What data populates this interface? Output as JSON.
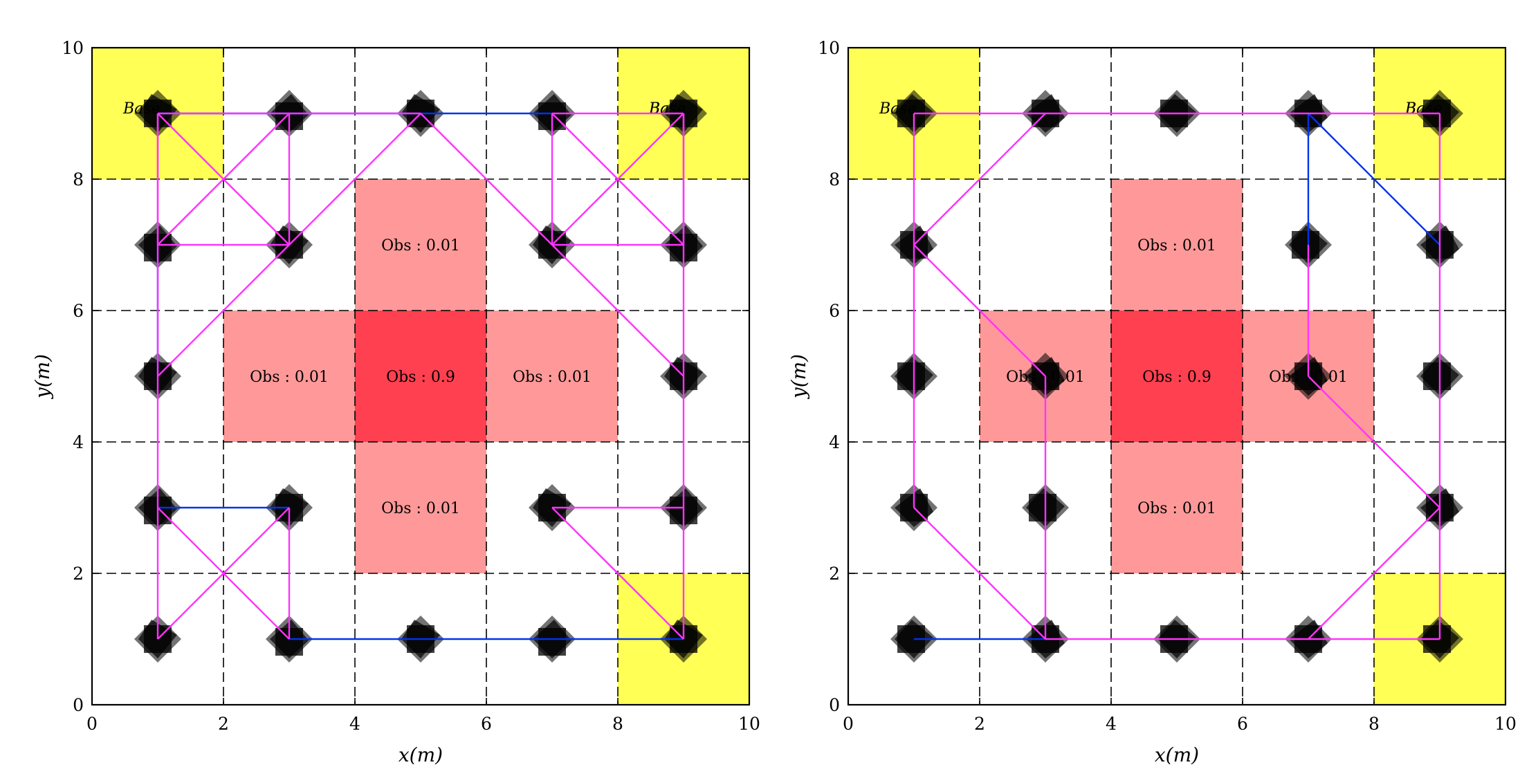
{
  "chart_data": [
    {
      "type": "scatter",
      "title": "",
      "xlabel": "x(m)",
      "ylabel": "y(m)",
      "xlim": [
        0,
        10
      ],
      "ylim": [
        0,
        10
      ],
      "xticks": [
        "0",
        "2",
        "4",
        "6",
        "8",
        "10"
      ],
      "yticks": [
        "0",
        "2",
        "4",
        "6",
        "8",
        "10"
      ],
      "grid": true,
      "grid_style": "dashed",
      "regions": [
        {
          "label": "Base",
          "x": [
            0,
            2
          ],
          "y": [
            8,
            10
          ],
          "color": "#ffff55"
        },
        {
          "label": "Base",
          "x": [
            8,
            10
          ],
          "y": [
            8,
            10
          ],
          "color": "#ffff55"
        },
        {
          "label": "Base",
          "x": [
            8,
            10
          ],
          "y": [
            0,
            2
          ],
          "color": "#ffff55"
        },
        {
          "label": "Obs : 0.01",
          "x": [
            4,
            6
          ],
          "y": [
            6,
            8
          ],
          "color": "#ff9999"
        },
        {
          "label": "Obs : 0.01",
          "x": [
            2,
            4
          ],
          "y": [
            4,
            6
          ],
          "color": "#ff9999"
        },
        {
          "label": "Obs : 0.9",
          "x": [
            4,
            6
          ],
          "y": [
            4,
            6
          ],
          "color": "#ff4050"
        },
        {
          "label": "Obs : 0.01",
          "x": [
            6,
            8
          ],
          "y": [
            4,
            6
          ],
          "color": "#ff9999"
        },
        {
          "label": "Obs : 0.01",
          "x": [
            4,
            6
          ],
          "y": [
            2,
            4
          ],
          "color": "#ff9999"
        }
      ],
      "nodes": [
        {
          "x": 1,
          "y": 9
        },
        {
          "x": 3,
          "y": 9
        },
        {
          "x": 5,
          "y": 9
        },
        {
          "x": 7,
          "y": 9
        },
        {
          "x": 9,
          "y": 9
        },
        {
          "x": 1,
          "y": 7
        },
        {
          "x": 3,
          "y": 7
        },
        {
          "x": 7,
          "y": 7
        },
        {
          "x": 9,
          "y": 7
        },
        {
          "x": 1,
          "y": 5
        },
        {
          "x": 9,
          "y": 5
        },
        {
          "x": 1,
          "y": 3
        },
        {
          "x": 3,
          "y": 3
        },
        {
          "x": 7,
          "y": 3
        },
        {
          "x": 9,
          "y": 3
        },
        {
          "x": 1,
          "y": 1
        },
        {
          "x": 3,
          "y": 1
        },
        {
          "x": 5,
          "y": 1
        },
        {
          "x": 7,
          "y": 1
        },
        {
          "x": 9,
          "y": 1
        }
      ],
      "series": [
        {
          "color": "#0033ee",
          "segments": [
            [
              [
                1,
                9
              ],
              [
                5,
                9
              ],
              [
                7,
                9
              ]
            ],
            [
              [
                1,
                7
              ],
              [
                1,
                5
              ]
            ],
            [
              [
                1,
                3
              ],
              [
                3,
                3
              ]
            ],
            [
              [
                3,
                1
              ],
              [
                9,
                1
              ]
            ]
          ]
        },
        {
          "color": "#ff33ff",
          "segments": [
            [
              [
                1,
                9
              ],
              [
                3,
                9
              ]
            ],
            [
              [
                1,
                9
              ],
              [
                3,
                7
              ]
            ],
            [
              [
                1,
                9
              ],
              [
                1,
                7
              ]
            ],
            [
              [
                3,
                9
              ],
              [
                1,
                7
              ]
            ],
            [
              [
                3,
                9
              ],
              [
                3,
                7
              ]
            ],
            [
              [
                1,
                7
              ],
              [
                3,
                7
              ]
            ],
            [
              [
                3,
                9
              ],
              [
                5,
                9
              ]
            ],
            [
              [
                1,
                5
              ],
              [
                5,
                9
              ]
            ],
            [
              [
                5,
                9
              ],
              [
                9,
                5
              ]
            ],
            [
              [
                7,
                9
              ],
              [
                9,
                9
              ]
            ],
            [
              [
                7,
                9
              ],
              [
                9,
                7
              ]
            ],
            [
              [
                7,
                9
              ],
              [
                7,
                7
              ]
            ],
            [
              [
                9,
                9
              ],
              [
                7,
                7
              ]
            ],
            [
              [
                9,
                9
              ],
              [
                9,
                7
              ]
            ],
            [
              [
                7,
                7
              ],
              [
                9,
                7
              ]
            ],
            [
              [
                9,
                9
              ],
              [
                9,
                1
              ]
            ],
            [
              [
                1,
                9
              ],
              [
                1,
                1
              ]
            ],
            [
              [
                1,
                3
              ],
              [
                3,
                1
              ]
            ],
            [
              [
                1,
                1
              ],
              [
                3,
                3
              ]
            ],
            [
              [
                3,
                3
              ],
              [
                3,
                1
              ]
            ],
            [
              [
                7,
                3
              ],
              [
                9,
                3
              ]
            ],
            [
              [
                7,
                3
              ],
              [
                9,
                1
              ]
            ]
          ]
        }
      ]
    },
    {
      "type": "scatter",
      "title": "",
      "xlabel": "x(m)",
      "ylabel": "y(m)",
      "xlim": [
        0,
        10
      ],
      "ylim": [
        0,
        10
      ],
      "xticks": [
        "0",
        "2",
        "4",
        "6",
        "8",
        "10"
      ],
      "yticks": [
        "0",
        "2",
        "4",
        "6",
        "8",
        "10"
      ],
      "grid": true,
      "grid_style": "dashed",
      "regions": [
        {
          "label": "Base",
          "x": [
            0,
            2
          ],
          "y": [
            8,
            10
          ],
          "color": "#ffff55"
        },
        {
          "label": "Base",
          "x": [
            8,
            10
          ],
          "y": [
            8,
            10
          ],
          "color": "#ffff55"
        },
        {
          "label": "Base",
          "x": [
            8,
            10
          ],
          "y": [
            0,
            2
          ],
          "color": "#ffff55"
        },
        {
          "label": "Obs : 0.01",
          "x": [
            4,
            6
          ],
          "y": [
            6,
            8
          ],
          "color": "#ff9999"
        },
        {
          "label": "Obs : 0.01",
          "x": [
            2,
            4
          ],
          "y": [
            4,
            6
          ],
          "color": "#ff9999"
        },
        {
          "label": "Obs : 0.9",
          "x": [
            4,
            6
          ],
          "y": [
            4,
            6
          ],
          "color": "#ff4050"
        },
        {
          "label": "Obs : 0.01",
          "x": [
            6,
            8
          ],
          "y": [
            4,
            6
          ],
          "color": "#ff9999"
        },
        {
          "label": "Obs : 0.01",
          "x": [
            4,
            6
          ],
          "y": [
            2,
            4
          ],
          "color": "#ff9999"
        }
      ],
      "nodes": [
        {
          "x": 1,
          "y": 9
        },
        {
          "x": 3,
          "y": 9
        },
        {
          "x": 5,
          "y": 9
        },
        {
          "x": 7,
          "y": 9
        },
        {
          "x": 9,
          "y": 9
        },
        {
          "x": 1,
          "y": 7
        },
        {
          "x": 7,
          "y": 7
        },
        {
          "x": 9,
          "y": 7
        },
        {
          "x": 1,
          "y": 5
        },
        {
          "x": 3,
          "y": 5
        },
        {
          "x": 7,
          "y": 5
        },
        {
          "x": 9,
          "y": 5
        },
        {
          "x": 1,
          "y": 3
        },
        {
          "x": 3,
          "y": 3
        },
        {
          "x": 9,
          "y": 3
        },
        {
          "x": 1,
          "y": 1
        },
        {
          "x": 3,
          "y": 1
        },
        {
          "x": 5,
          "y": 1
        },
        {
          "x": 7,
          "y": 1
        },
        {
          "x": 9,
          "y": 1
        }
      ],
      "series": [
        {
          "color": "#0033ee",
          "segments": [
            [
              [
                7,
                9
              ],
              [
                9,
                7
              ]
            ],
            [
              [
                7,
                9
              ],
              [
                7,
                7
              ]
            ],
            [
              [
                1,
                1
              ],
              [
                3,
                1
              ]
            ]
          ]
        },
        {
          "color": "#ff33ff",
          "segments": [
            [
              [
                1,
                9
              ],
              [
                9,
                9
              ]
            ],
            [
              [
                1,
                9
              ],
              [
                1,
                3
              ]
            ],
            [
              [
                1,
                7
              ],
              [
                3,
                9
              ]
            ],
            [
              [
                1,
                7
              ],
              [
                3,
                5
              ]
            ],
            [
              [
                3,
                5
              ],
              [
                3,
                1
              ]
            ],
            [
              [
                1,
                3
              ],
              [
                3,
                1
              ]
            ],
            [
              [
                3,
                1
              ],
              [
                9,
                1
              ]
            ],
            [
              [
                7,
                1
              ],
              [
                9,
                3
              ]
            ],
            [
              [
                9,
                9
              ],
              [
                9,
                1
              ]
            ],
            [
              [
                7,
                7
              ],
              [
                7,
                5
              ]
            ],
            [
              [
                7,
                5
              ],
              [
                9,
                3
              ]
            ]
          ]
        }
      ]
    }
  ]
}
